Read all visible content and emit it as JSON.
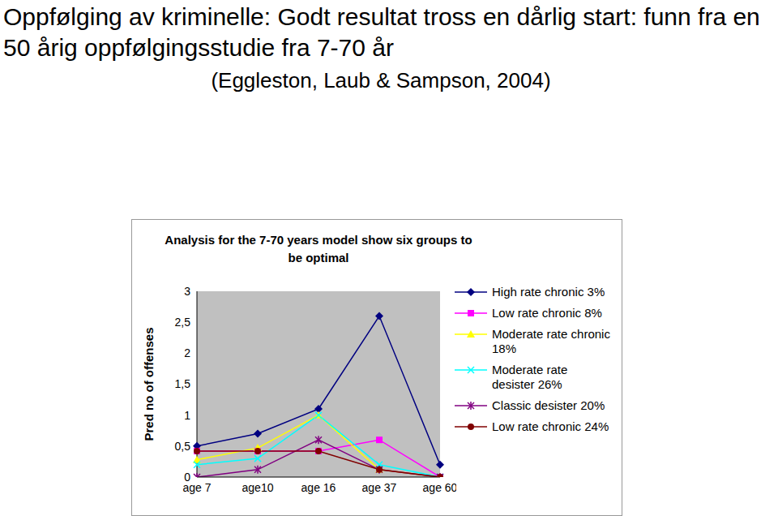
{
  "slide": {
    "title": "Oppfølging av kriminelle: Godt resultat tross en dårlig start: funn fra en 50 årig oppfølgingsstudie fra 7-70 år",
    "subtitle": "(Eggleston, Laub & Sampson, 2004)"
  },
  "chart_data": {
    "type": "line",
    "title": "Analysis for the 7-70 years model show six groups to be optimal",
    "y_label": "Pred no of offenses",
    "categories": [
      "age 7",
      "age10",
      "age 16",
      "age 37",
      "age 60"
    ],
    "ylim": [
      0,
      3
    ],
    "yticks": [
      0,
      {
        "value": 0.5,
        "label": "0,5"
      },
      1,
      {
        "value": 1.5,
        "label": "1,5"
      },
      2,
      {
        "value": 2.5,
        "label": "2,5"
      },
      3
    ],
    "grid": false,
    "legend": "right",
    "series": [
      {
        "name": "High rate chronic 3%",
        "color": "#000080",
        "marker": "diamond",
        "values": [
          0.5,
          0.7,
          1.1,
          2.6,
          0.2
        ]
      },
      {
        "name": "Low rate chronic 8%",
        "color": "#ff00ff",
        "marker": "square",
        "values": [
          0.42,
          0.42,
          0.42,
          0.6,
          0
        ]
      },
      {
        "name": "Moderate rate chronic 18%",
        "color": "#ffff00",
        "marker": "triangle",
        "values": [
          0.28,
          0.47,
          1.0,
          0.12,
          0
        ]
      },
      {
        "name": "Moderate rate desister 26%",
        "color": "#00ffff",
        "marker": "x",
        "values": [
          0.2,
          0.3,
          1.0,
          0.2,
          0
        ]
      },
      {
        "name": "Classic desister 20%",
        "color": "#800080",
        "marker": "star",
        "values": [
          0,
          0.12,
          0.6,
          0.12,
          0
        ]
      },
      {
        "name": "Low rate chronic 24%",
        "color": "#800000",
        "marker": "circle",
        "values": [
          0.42,
          0.42,
          0.42,
          0.12,
          0
        ]
      }
    ]
  }
}
